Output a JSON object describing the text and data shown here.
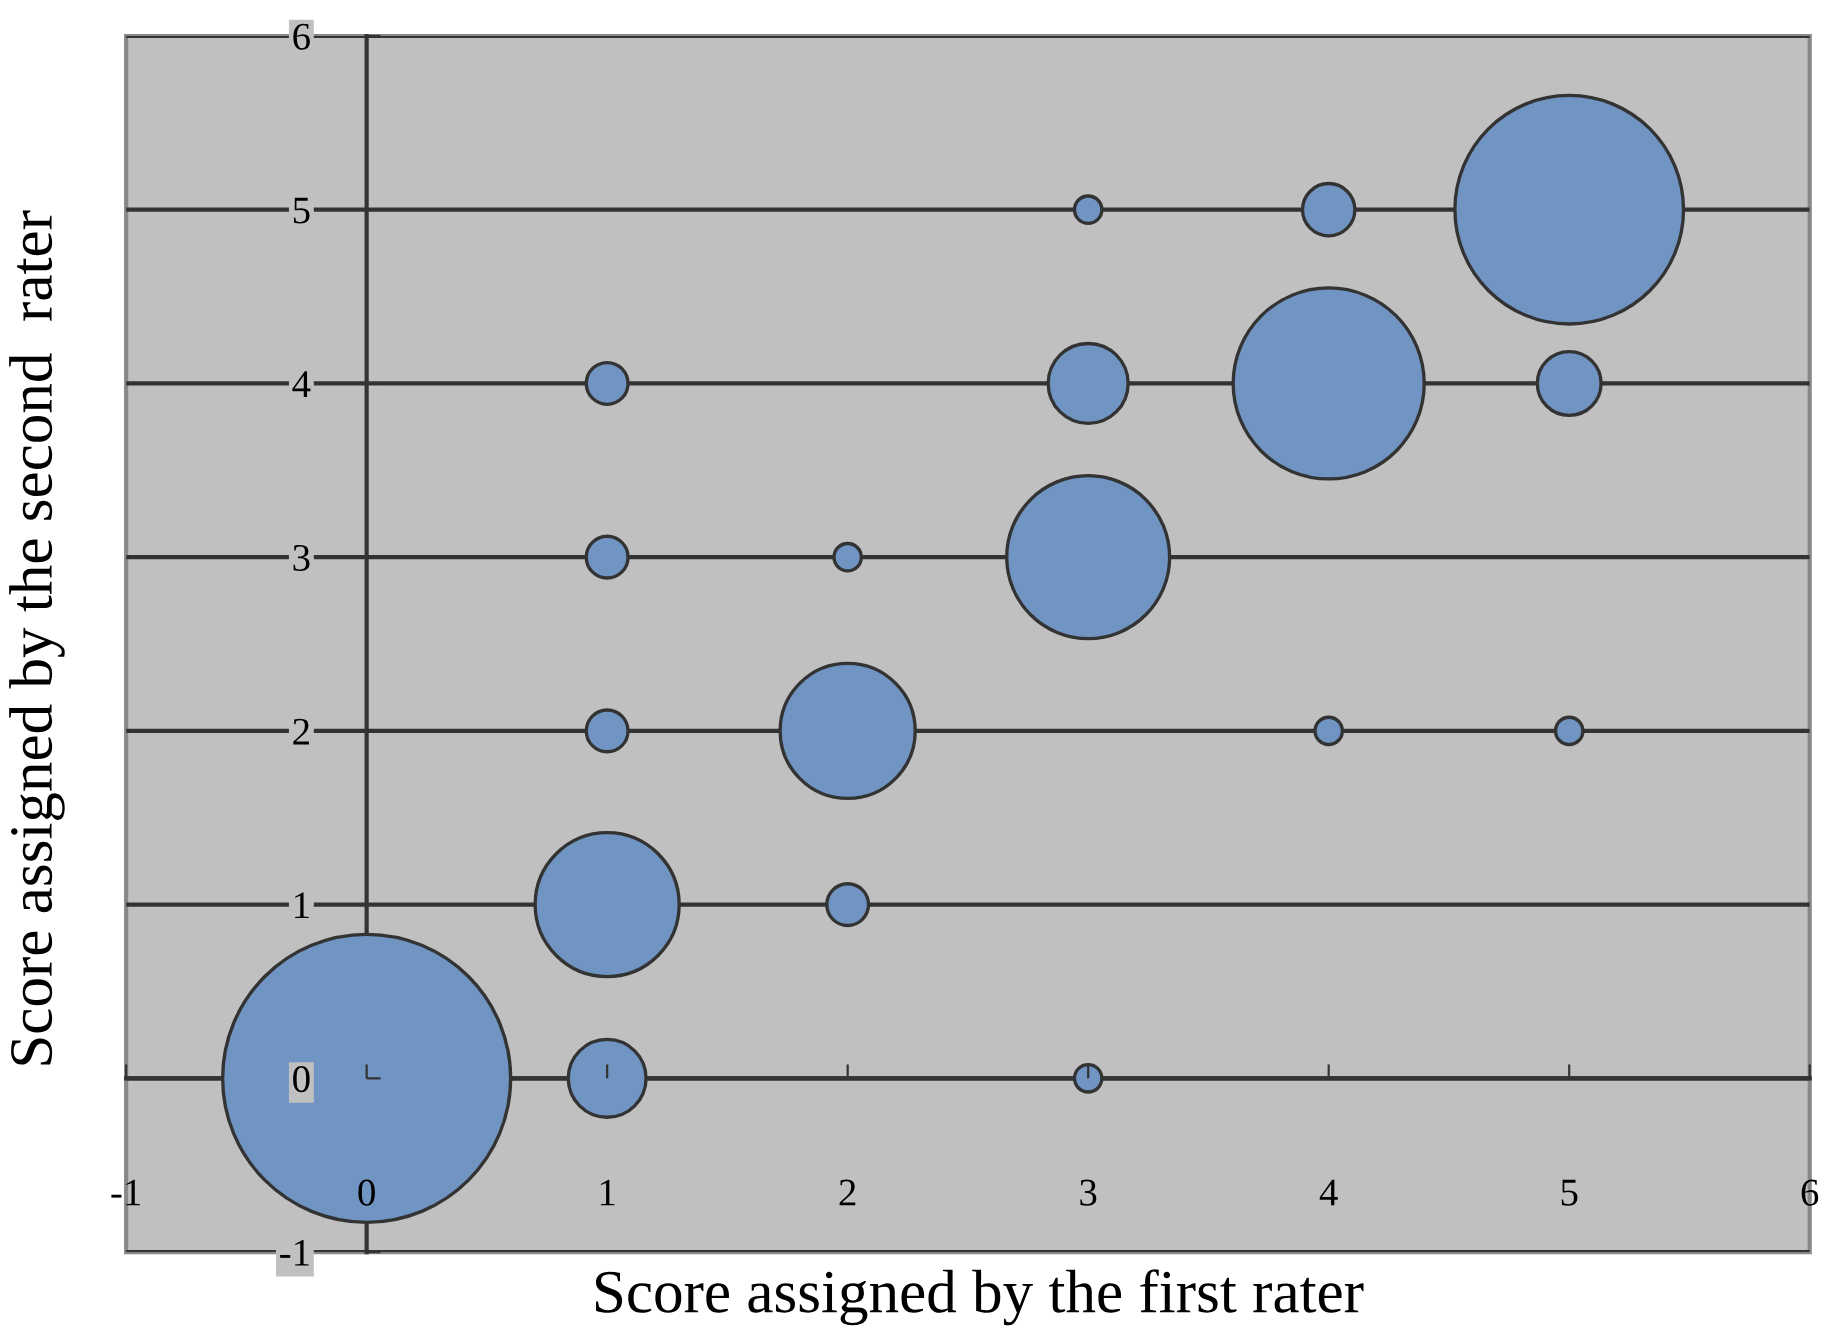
{
  "chart_data": {
    "type": "bubble",
    "xlabel": "Score assigned by the first rater",
    "ylabel": "Score assigned by the second  rater",
    "series": [
      {
        "color": "#7095c3",
        "x": [
          0,
          1,
          1,
          1,
          1,
          1,
          2,
          2,
          2,
          3,
          3,
          3,
          3,
          4,
          4,
          4,
          5,
          5,
          5
        ],
        "values": [
          0,
          0,
          1,
          2,
          3,
          4,
          1,
          2,
          3,
          0,
          3,
          4,
          5,
          2,
          4,
          5,
          2,
          4,
          5
        ],
        "sizes": [
          1,
          0.073,
          0.25,
          0.021,
          0.021,
          0.021,
          0.021,
          0.22,
          0.009,
          0.009,
          0.32,
          0.077,
          0.009,
          0.009,
          0.44,
          0.033,
          0.009,
          0.049,
          0.63
        ]
      }
    ],
    "xlim": [
      -1,
      6
    ],
    "ylim": [
      -1,
      6
    ],
    "xticks": [
      -1,
      0,
      1,
      2,
      3,
      4,
      5,
      6
    ],
    "yticks": [
      -1,
      0,
      1,
      2,
      3,
      4,
      5,
      6
    ],
    "grid": "y"
  }
}
